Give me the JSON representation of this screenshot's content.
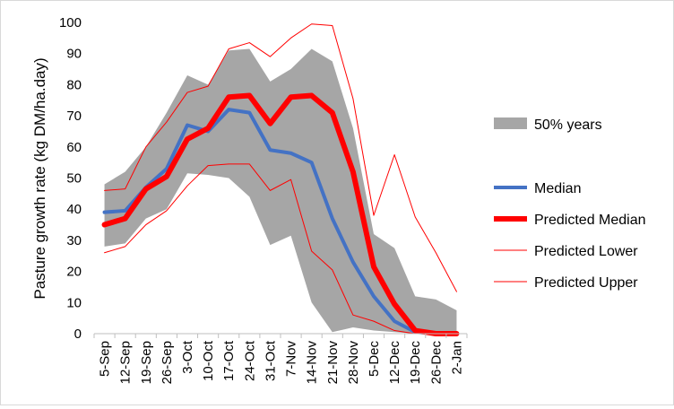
{
  "chart_data": {
    "type": "line",
    "title": "",
    "xlabel": "",
    "ylabel": "Pasture growth rate (kg DM/ha.day)",
    "ylim": [
      0,
      100
    ],
    "yticks": [
      0,
      10,
      20,
      30,
      40,
      50,
      60,
      70,
      80,
      90,
      100
    ],
    "grid": false,
    "legend_position": "right",
    "categories": [
      "5-Sep",
      "12-Sep",
      "19-Sep",
      "26-Sep",
      "3-Oct",
      "10-Oct",
      "17-Oct",
      "24-Oct",
      "31-Oct",
      "7-Nov",
      "14-Nov",
      "21-Nov",
      "28-Nov",
      "5-Dec",
      "12-Dec",
      "19-Dec",
      "26-Dec",
      "2-Jan"
    ],
    "band": {
      "name": "50% years",
      "color": "#a6a6a6",
      "lower": [
        28,
        29,
        37,
        40,
        51.5,
        51,
        50,
        44,
        28.5,
        31.5,
        10,
        0.5,
        2,
        1,
        0.5,
        0,
        0,
        0
      ],
      "upper": [
        48,
        52,
        60,
        71,
        83,
        80,
        91,
        91.5,
        81,
        85,
        91.5,
        87.5,
        66,
        32,
        27.5,
        12,
        11,
        7.5
      ]
    },
    "series": [
      {
        "name": "Median",
        "color": "#4472c4",
        "width": 4,
        "values": [
          39,
          39.5,
          47,
          53,
          67,
          65,
          72,
          71,
          59,
          58,
          55,
          37,
          23,
          12,
          4,
          0.5,
          0,
          0
        ]
      },
      {
        "name": "Predicted Median",
        "color": "#ff0000",
        "width": 6,
        "values": [
          35,
          37,
          46.5,
          50.5,
          62.5,
          66,
          76,
          76.5,
          67.5,
          76,
          76.5,
          71,
          52,
          21.5,
          9.5,
          1,
          0,
          0
        ]
      },
      {
        "name": "Predicted Lower",
        "color": "#ff0000",
        "width": 1,
        "values": [
          26,
          28,
          35,
          39.5,
          47.5,
          54,
          54.5,
          54.5,
          46,
          49.5,
          26.5,
          20.5,
          6,
          4,
          1,
          0,
          0,
          0
        ]
      },
      {
        "name": "Predicted Upper",
        "color": "#ff0000",
        "width": 1,
        "values": [
          46,
          46.5,
          60,
          68,
          77.5,
          79.5,
          91.5,
          93.5,
          89,
          95,
          99.5,
          99,
          75.5,
          38,
          57.5,
          37.5,
          26,
          13.5
        ]
      }
    ]
  }
}
